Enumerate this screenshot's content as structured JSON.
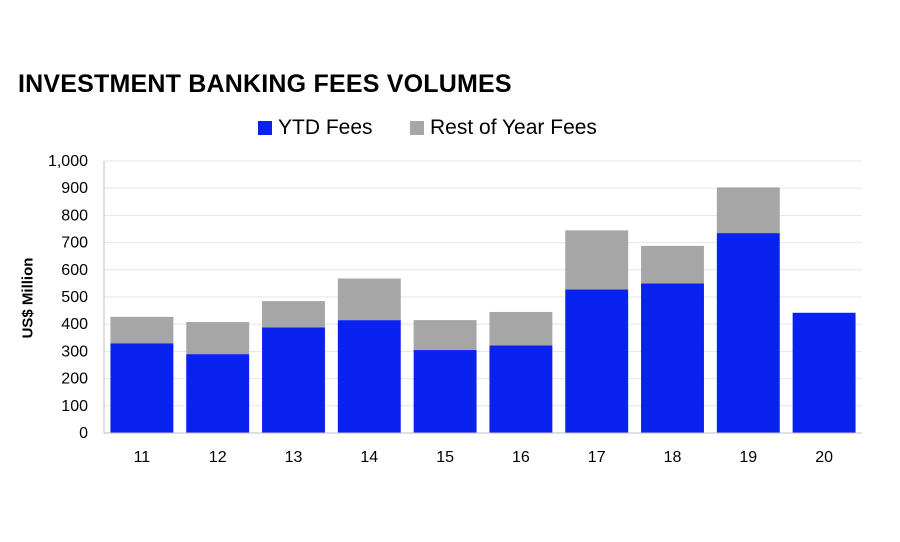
{
  "chart_data": {
    "type": "bar",
    "stacked": true,
    "title": "INVESTMENT BANKING FEES VOLUMES",
    "ylabel": "US$ Million",
    "xlabel": "",
    "ylim": [
      0,
      1000
    ],
    "yticks": [
      "0",
      "100",
      "200",
      "300",
      "400",
      "500",
      "600",
      "700",
      "800",
      "900",
      "1,000"
    ],
    "categories": [
      "11",
      "12",
      "13",
      "14",
      "15",
      "16",
      "17",
      "18",
      "19",
      "20"
    ],
    "series": [
      {
        "name": "YTD Fees",
        "color": "#0a22f0",
        "values": [
          330,
          290,
          388,
          415,
          305,
          322,
          528,
          550,
          735,
          442
        ]
      },
      {
        "name": "Rest of Year Fees",
        "color": "#a6a6a6",
        "values": [
          97,
          118,
          97,
          153,
          110,
          123,
          217,
          138,
          168,
          0
        ]
      }
    ],
    "legend_position": "top-center",
    "grid": true
  }
}
